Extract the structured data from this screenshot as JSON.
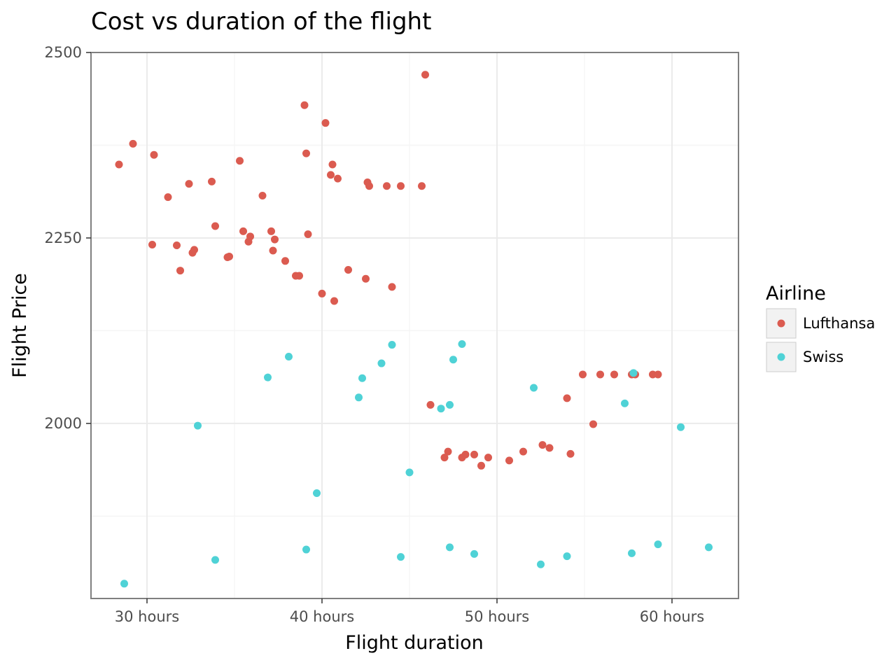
{
  "chart_data": {
    "type": "scatter",
    "title": "Cost vs duration of the flight",
    "xlabel": "Flight duration",
    "ylabel": "Flight Price",
    "xlim": [
      26.8,
      63.8
    ],
    "ylim": [
      1764,
      2500
    ],
    "x_ticks": [
      {
        "value": 30,
        "label": "30 hours"
      },
      {
        "value": 40,
        "label": "40 hours"
      },
      {
        "value": 50,
        "label": "50 hours"
      },
      {
        "value": 60,
        "label": "60 hours"
      }
    ],
    "y_ticks": [
      {
        "value": 2000,
        "label": "2000"
      },
      {
        "value": 2250,
        "label": "2250"
      },
      {
        "value": 2500,
        "label": "2500"
      }
    ],
    "y_minor": [
      1875,
      2125,
      2375
    ],
    "x_minor": [
      35,
      45,
      55
    ],
    "grid": true,
    "legend": {
      "title": "Airline",
      "position": "right"
    },
    "colors": {
      "Lufthansa": "#db5b50",
      "Swiss": "#4fd2d6",
      "panel_border": "#7f7f7f",
      "grid_major": "#ebebeb",
      "grid_minor": "#f5f5f5"
    },
    "series": [
      {
        "name": "Lufthansa",
        "points": [
          [
            28.4,
            2349
          ],
          [
            29.2,
            2377
          ],
          [
            30.4,
            2362
          ],
          [
            30.3,
            2241
          ],
          [
            31.2,
            2305
          ],
          [
            31.7,
            2240
          ],
          [
            31.9,
            2206
          ],
          [
            32.4,
            2323
          ],
          [
            32.6,
            2230
          ],
          [
            32.7,
            2234
          ],
          [
            33.7,
            2326
          ],
          [
            33.9,
            2266
          ],
          [
            34.6,
            2224
          ],
          [
            34.7,
            2225
          ],
          [
            35.3,
            2354
          ],
          [
            35.5,
            2259
          ],
          [
            35.8,
            2245
          ],
          [
            35.9,
            2252
          ],
          [
            36.6,
            2307
          ],
          [
            37.1,
            2259
          ],
          [
            37.2,
            2233
          ],
          [
            37.3,
            2248
          ],
          [
            37.9,
            2219
          ],
          [
            38.5,
            2199
          ],
          [
            38.7,
            2199
          ],
          [
            39.0,
            2429
          ],
          [
            39.1,
            2364
          ],
          [
            39.2,
            2255
          ],
          [
            40.0,
            2175
          ],
          [
            40.2,
            2405
          ],
          [
            40.5,
            2335
          ],
          [
            40.6,
            2349
          ],
          [
            40.7,
            2165
          ],
          [
            40.9,
            2330
          ],
          [
            41.5,
            2207
          ],
          [
            42.5,
            2195
          ],
          [
            42.6,
            2325
          ],
          [
            42.7,
            2320
          ],
          [
            43.7,
            2320
          ],
          [
            44.0,
            2184
          ],
          [
            44.5,
            2320
          ],
          [
            45.7,
            2320
          ],
          [
            45.9,
            2470
          ],
          [
            46.2,
            2025
          ],
          [
            47.0,
            1954
          ],
          [
            47.2,
            1962
          ],
          [
            48.0,
            1954
          ],
          [
            48.2,
            1958
          ],
          [
            48.7,
            1958
          ],
          [
            49.1,
            1943
          ],
          [
            49.5,
            1954
          ],
          [
            50.7,
            1950
          ],
          [
            51.5,
            1962
          ],
          [
            52.6,
            1971
          ],
          [
            53.0,
            1967
          ],
          [
            54.0,
            2034
          ],
          [
            54.2,
            1959
          ],
          [
            54.9,
            2066
          ],
          [
            55.5,
            1999
          ],
          [
            55.9,
            2066
          ],
          [
            56.7,
            2066
          ],
          [
            57.7,
            2066
          ],
          [
            57.9,
            2066
          ],
          [
            58.9,
            2066
          ],
          [
            59.2,
            2066
          ]
        ]
      },
      {
        "name": "Swiss",
        "points": [
          [
            28.7,
            1784
          ],
          [
            32.9,
            1997
          ],
          [
            33.9,
            1816
          ],
          [
            36.9,
            2062
          ],
          [
            38.1,
            2090
          ],
          [
            39.1,
            1830
          ],
          [
            39.7,
            1906
          ],
          [
            42.1,
            2035
          ],
          [
            42.3,
            2061
          ],
          [
            43.4,
            2081
          ],
          [
            44.0,
            2106
          ],
          [
            44.5,
            1820
          ],
          [
            45.0,
            1934
          ],
          [
            46.8,
            2020
          ],
          [
            47.3,
            2025
          ],
          [
            47.3,
            1833
          ],
          [
            47.5,
            2086
          ],
          [
            48.0,
            2107
          ],
          [
            48.7,
            1824
          ],
          [
            52.1,
            2048
          ],
          [
            52.5,
            1810
          ],
          [
            54.0,
            1821
          ],
          [
            57.3,
            2027
          ],
          [
            57.7,
            1825
          ],
          [
            57.8,
            2068
          ],
          [
            59.2,
            1837
          ],
          [
            60.5,
            1995
          ],
          [
            62.1,
            1833
          ]
        ]
      }
    ]
  }
}
